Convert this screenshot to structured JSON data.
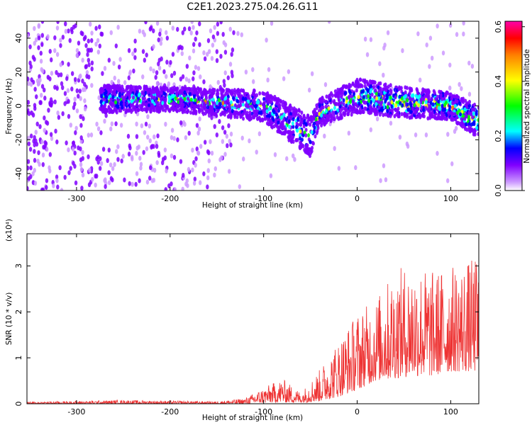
{
  "chart_data": [
    {
      "type": "heatmap",
      "title": "C2E1.2023.275.04.26.G11",
      "xlabel": "Height of straight line (km)",
      "ylabel": "Frequency (Hz)",
      "xlim": [
        -353,
        130
      ],
      "ylim": [
        -50,
        50
      ],
      "xticks": [
        "-300",
        "-200",
        "-100",
        "0",
        "100"
      ],
      "yticks": [
        "-40",
        "-20",
        "0",
        "20",
        "40"
      ],
      "colorbar": {
        "label": "Normalized spectral amplitude",
        "range": [
          0.0,
          0.62
        ],
        "ticks": [
          "0.0",
          "0.2",
          "0.4",
          "0.6"
        ],
        "colors": [
          "#ffffff",
          "#cc99ff",
          "#8000ff",
          "#0000ff",
          "#00ffff",
          "#00ff00",
          "#ffff00",
          "#ff8000",
          "#ff0000",
          "#ff00aa"
        ]
      },
      "signal_band": {
        "x": [
          -270,
          -200,
          -100,
          -50,
          -40,
          0,
          50,
          100,
          125
        ],
        "center_hz": [
          4,
          4,
          0,
          -18,
          -4,
          6,
          2,
          0,
          -8
        ],
        "half_width_hz": [
          8,
          7,
          9,
          12,
          8,
          10,
          9,
          8,
          9
        ]
      },
      "grid": false,
      "legend": "none"
    },
    {
      "type": "line",
      "xlabel": "Height of straight line (km)",
      "ylabel": "SNR (10 * v/v)",
      "y_scale_label": "(x10⁴)",
      "xlim": [
        -353,
        130
      ],
      "ylim": [
        0,
        3.7
      ],
      "xticks": [
        "-300",
        "-200",
        "-100",
        "0",
        "100"
      ],
      "yticks": [
        "0",
        "1",
        "2",
        "3"
      ],
      "color": "#ee3333",
      "envelope": {
        "x": [
          -353,
          -250,
          -150,
          -120,
          -100,
          -80,
          -60,
          -40,
          -20,
          0,
          20,
          40,
          60,
          80,
          100,
          130
        ],
        "peak": [
          0.04,
          0.08,
          0.05,
          0.12,
          0.35,
          0.55,
          0.25,
          0.75,
          1.4,
          2.0,
          2.3,
          2.9,
          3.1,
          2.9,
          3.0,
          3.2
        ],
        "floor": [
          0.0,
          0.0,
          0.0,
          0.0,
          0.02,
          0.03,
          0.02,
          0.05,
          0.15,
          0.3,
          0.5,
          0.55,
          0.6,
          0.6,
          0.7,
          0.7
        ]
      },
      "grid": false,
      "legend": "none"
    }
  ]
}
